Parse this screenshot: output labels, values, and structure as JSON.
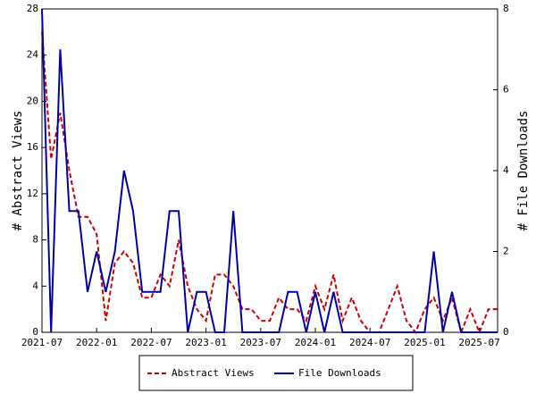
{
  "chart_data": {
    "type": "line",
    "x": [
      "2021-07",
      "2021-08",
      "2021-09",
      "2021-10",
      "2021-11",
      "2021-12",
      "2022-01",
      "2022-02",
      "2022-03",
      "2022-04",
      "2022-05",
      "2022-06",
      "2022-07",
      "2022-08",
      "2022-09",
      "2022-10",
      "2022-11",
      "2022-12",
      "2023-01",
      "2023-02",
      "2023-03",
      "2023-04",
      "2023-05",
      "2023-06",
      "2023-07",
      "2023-08",
      "2023-09",
      "2023-10",
      "2023-11",
      "2023-12",
      "2024-01",
      "2024-02",
      "2024-03",
      "2024-04",
      "2024-05",
      "2024-06",
      "2024-07",
      "2024-08",
      "2024-09",
      "2024-10",
      "2024-11",
      "2024-12",
      "2025-01",
      "2025-02",
      "2025-03",
      "2025-04",
      "2025-05",
      "2025-06",
      "2025-07",
      "2025-08",
      "2025-09"
    ],
    "xlim": [
      "2021-07",
      "2025-09"
    ],
    "xticks": [
      "2021-07",
      "2022-01",
      "2022-07",
      "2023-01",
      "2023-07",
      "2024-01",
      "2024-07",
      "2025-01",
      "2025-07"
    ],
    "ylabel": "# Abstract Views",
    "y2label": "# File Downloads",
    "ylim": [
      0,
      28
    ],
    "yticks": [
      0,
      4,
      8,
      12,
      16,
      20,
      24,
      28
    ],
    "y2lim": [
      0,
      8
    ],
    "y2ticks": [
      0,
      2,
      4,
      6,
      8
    ],
    "legend": "bottom",
    "series": [
      {
        "name": "Abstract Views",
        "color": "#cc0000",
        "dash": true,
        "axis": "y",
        "values": [
          26,
          15,
          19,
          14,
          10,
          10,
          8.5,
          1,
          6,
          7,
          6,
          3,
          3,
          5,
          4,
          8,
          4,
          2,
          1,
          5,
          5,
          4,
          2,
          2,
          1,
          1,
          3,
          2,
          2,
          1,
          4,
          2,
          5,
          1,
          3,
          1,
          0,
          0,
          2,
          4,
          1,
          0,
          2,
          3,
          1,
          3,
          0,
          2,
          0,
          2,
          2
        ]
      },
      {
        "name": "File Downloads",
        "color": "#0000aa",
        "dash": false,
        "axis": "y2",
        "values": [
          8,
          0,
          7,
          3,
          3,
          1,
          2,
          1,
          2,
          4,
          3,
          1,
          1,
          1,
          3,
          3,
          0,
          1,
          1,
          0,
          0,
          3,
          0,
          0,
          0,
          0,
          0,
          1,
          1,
          0,
          1,
          0,
          1,
          0,
          0,
          0,
          0,
          0,
          0,
          0,
          0,
          0,
          0,
          2,
          0,
          1,
          0,
          0,
          0,
          0,
          0
        ]
      }
    ]
  }
}
